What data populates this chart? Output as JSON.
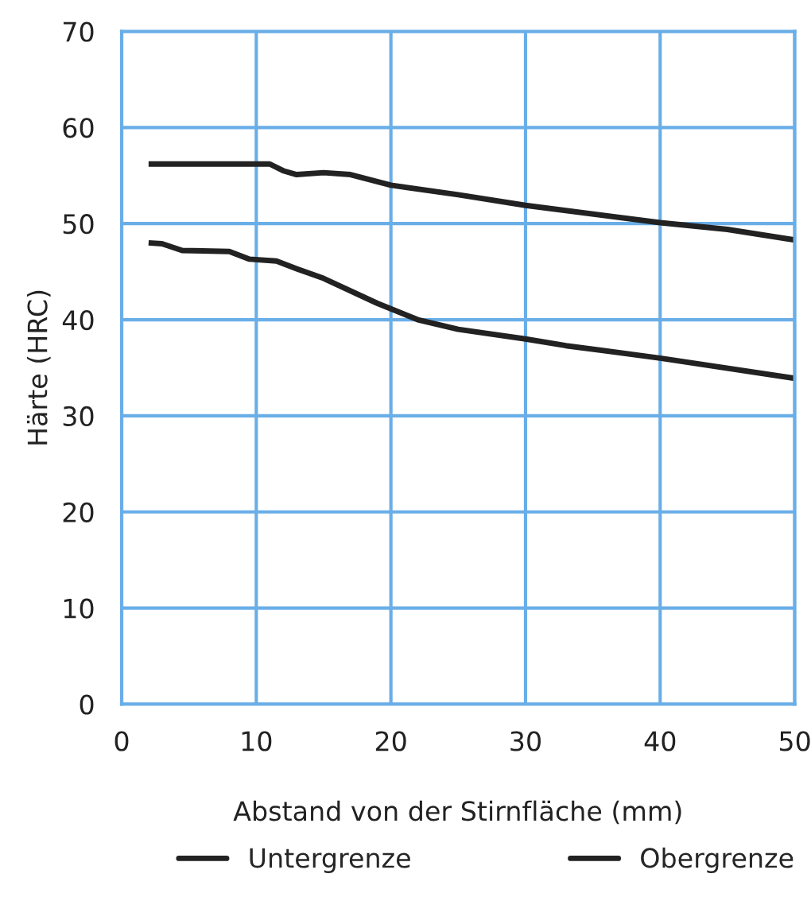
{
  "chart_data": {
    "type": "line",
    "xlabel": "Abstand von der Stirnfläche (mm)",
    "ylabel": "Härte (HRC)",
    "xlim": [
      0,
      50
    ],
    "xticks": [
      0,
      10,
      20,
      30,
      40,
      50
    ],
    "ylim": [
      0,
      70
    ],
    "yticks": [
      0,
      10,
      20,
      30,
      40,
      50,
      60,
      70
    ],
    "grid": true,
    "legend": "bottom",
    "line_style": "solid",
    "marker": "none",
    "series": [
      {
        "name": "Untergrenze",
        "color": "#222222",
        "x": [
          2,
          3,
          4.5,
          8,
          9.5,
          11.5,
          13,
          15,
          19,
          22,
          25,
          30,
          33,
          40,
          50
        ],
        "values": [
          48,
          47.9,
          47.2,
          47.1,
          46.3,
          46.1,
          45.3,
          44.3,
          41.7,
          40,
          39,
          38,
          37.3,
          36,
          33.9
        ]
      },
      {
        "name": "Obergrenze",
        "color": "#222222",
        "x": [
          2,
          11,
          12,
          13,
          15,
          17,
          20,
          25,
          30,
          40,
          45,
          50
        ],
        "values": [
          56.2,
          56.2,
          55.5,
          55.1,
          55.3,
          55.1,
          54,
          53,
          51.9,
          50.1,
          49.4,
          48.3
        ]
      }
    ]
  }
}
